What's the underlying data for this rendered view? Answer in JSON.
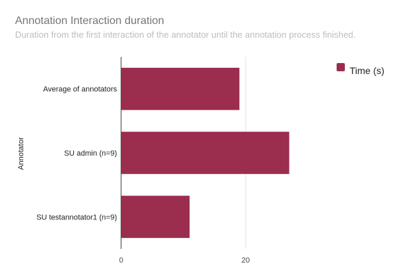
{
  "chart_data": {
    "type": "bar",
    "orientation": "horizontal",
    "title": "Annotation Interaction duration",
    "subtitle": "Duration from the first interaction of the annotator until the annotation process finished.",
    "ylabel": "Annotator",
    "xlabel": "",
    "categories": [
      "Average of annotators",
      "SU admin (n=9)",
      "SU testannotator1 (n=9)"
    ],
    "series": [
      {
        "name": "Time (s)",
        "values": [
          19,
          27,
          11
        ],
        "color": "#9b2d4e"
      }
    ],
    "xlim": [
      0,
      30
    ],
    "xticks": [
      0,
      20
    ],
    "grid": true,
    "legend": "top-right"
  }
}
